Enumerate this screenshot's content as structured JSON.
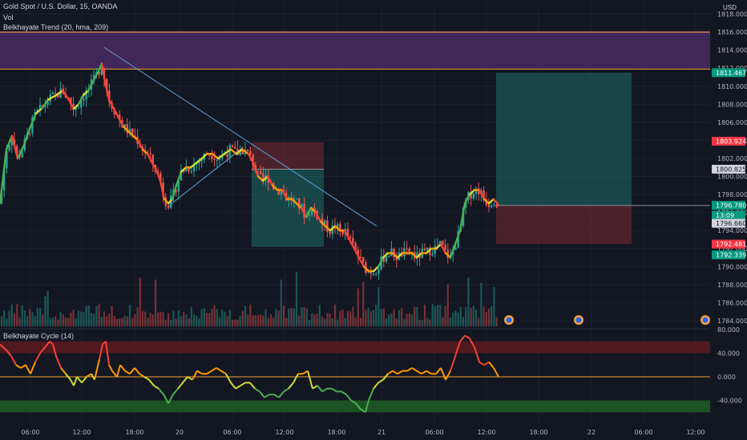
{
  "legend": {
    "symbol": "Gold Spot / U.S. Dollar, 15, OANDA",
    "volume": "Vol",
    "trend": "Belkhayate Trend (20, hma, 209)",
    "cycle": "Belkhayate Cycle (14)"
  },
  "currency": "USD",
  "colors": {
    "background": "#131722",
    "up": "#26a69a",
    "down": "#ef5350",
    "grid": "#1e222d",
    "purple_zone": "#4a2a63",
    "orange_line": "#f7a23b",
    "trend_line": "#5da3d6"
  },
  "chart_data": [
    {
      "type": "candlestick",
      "name": "Gold Spot / U.S. Dollar, 15, OANDA",
      "ylim": [
        1783.2,
        1819.2
      ],
      "yticks": [
        1784.0,
        1786.0,
        1788.0,
        1790.0,
        1792.0,
        1794.0,
        1796.0,
        1798.0,
        1800.0,
        1802.0,
        1804.0,
        1806.0,
        1808.0,
        1810.0,
        1812.0,
        1814.0,
        1816.0,
        1818.0
      ],
      "ytick_labels": [
        "1784.000",
        "1786.000",
        "1788.000",
        "1790.000",
        "1792.000",
        "1794.000",
        "1796.000",
        "1798.000",
        "1800.000",
        "1802.000",
        "1804.000",
        "1806.000",
        "1808.000",
        "1810.000",
        "1812.000",
        "1814.000",
        "1816.000",
        "1818.000"
      ],
      "xtick_labels": [
        "06:00",
        "12:00",
        "18:00",
        "20",
        "06:00",
        "12:00",
        "18:00",
        "21",
        "06:00",
        "12:00",
        "18:00",
        "22",
        "06:00",
        "12:00"
      ],
      "close_path": [
        [
          0,
          1797.0
        ],
        [
          8,
          1803.0
        ],
        [
          15,
          1804.5
        ],
        [
          22,
          1802.0
        ],
        [
          30,
          1803.5
        ],
        [
          38,
          1805.5
        ],
        [
          45,
          1807.0
        ],
        [
          52,
          1807.5
        ],
        [
          60,
          1808.5
        ],
        [
          70,
          1809.0
        ],
        [
          78,
          1809.5
        ],
        [
          86,
          1808.5
        ],
        [
          92,
          1807.5
        ],
        [
          98,
          1808.0
        ],
        [
          104,
          1809.0
        ],
        [
          110,
          1809.5
        ],
        [
          116,
          1810.5
        ],
        [
          122,
          1811.5
        ],
        [
          127,
          1812.5
        ],
        [
          131,
          1810.5
        ],
        [
          136,
          1808.5
        ],
        [
          142,
          1807.5
        ],
        [
          148,
          1806.5
        ],
        [
          154,
          1805.5
        ],
        [
          160,
          1805.0
        ],
        [
          166,
          1804.5
        ],
        [
          172,
          1804.0
        ],
        [
          178,
          1803.0
        ],
        [
          184,
          1802.5
        ],
        [
          190,
          1801.5
        ],
        [
          196,
          1800.5
        ],
        [
          200,
          1799.5
        ],
        [
          205,
          1797.5
        ],
        [
          210,
          1797.0
        ],
        [
          215,
          1797.5
        ],
        [
          220,
          1799.0
        ],
        [
          226,
          1800.5
        ],
        [
          232,
          1801.0
        ],
        [
          238,
          1801.0
        ],
        [
          245,
          1801.5
        ],
        [
          252,
          1802.0
        ],
        [
          258,
          1802.5
        ],
        [
          265,
          1802.5
        ],
        [
          272,
          1802.0
        ],
        [
          280,
          1802.5
        ],
        [
          288,
          1803.0
        ],
        [
          295,
          1802.5
        ],
        [
          302,
          1803.0
        ],
        [
          310,
          1802.5
        ],
        [
          316,
          1801.5
        ],
        [
          322,
          1800.0
        ],
        [
          328,
          1799.5
        ],
        [
          334,
          1800.0
        ],
        [
          340,
          1799.0
        ],
        [
          346,
          1798.5
        ],
        [
          352,
          1798.5
        ],
        [
          358,
          1797.5
        ],
        [
          364,
          1797.5
        ],
        [
          370,
          1797.0
        ],
        [
          376,
          1796.5
        ],
        [
          382,
          1795.5
        ],
        [
          388,
          1796.5
        ],
        [
          394,
          1796.0
        ],
        [
          400,
          1795.0
        ],
        [
          406,
          1794.5
        ],
        [
          412,
          1794.0
        ],
        [
          418,
          1794.5
        ],
        [
          424,
          1794.0
        ],
        [
          430,
          1794.0
        ],
        [
          436,
          1793.0
        ],
        [
          442,
          1792.0
        ],
        [
          448,
          1791.0
        ],
        [
          454,
          1790.0
        ],
        [
          460,
          1789.5
        ],
        [
          466,
          1789.5
        ],
        [
          472,
          1790.0
        ],
        [
          478,
          1791.0
        ],
        [
          484,
          1791.5
        ],
        [
          490,
          1791.5
        ],
        [
          496,
          1791.0
        ],
        [
          502,
          1791.5
        ],
        [
          508,
          1791.5
        ],
        [
          514,
          1791.5
        ],
        [
          520,
          1791.0
        ],
        [
          526,
          1791.5
        ],
        [
          532,
          1791.5
        ],
        [
          538,
          1792.0
        ],
        [
          544,
          1792.0
        ],
        [
          550,
          1792.5
        ],
        [
          556,
          1791.5
        ],
        [
          562,
          1791.0
        ],
        [
          568,
          1792.5
        ],
        [
          574,
          1794.0
        ],
        [
          580,
          1797.0
        ],
        [
          586,
          1798.0
        ],
        [
          592,
          1798.5
        ],
        [
          598,
          1798.5
        ],
        [
          604,
          1797.5
        ],
        [
          610,
          1797.0
        ],
        [
          616,
          1797.5
        ],
        [
          622,
          1796.8
        ]
      ],
      "volume_ylim": [
        0,
        100
      ],
      "annotations": {
        "resistance_zone": [
          1811.9,
          1816.1
        ],
        "resistance_lines": [
          1816.0,
          1811.9
        ],
        "trend_line": {
          "start": [
            130,
            1814.3
          ],
          "end": [
            470,
            1794.5
          ]
        },
        "support_line": {
          "start": [
            210,
            1796.7
          ],
          "end": [
            303,
            1803.2
          ]
        },
        "short_position": {
          "x": [
            314,
            404
          ],
          "entry": 1800.8,
          "stop": 1803.8,
          "target": 1792.2
        },
        "long_position": {
          "x": [
            619,
            788
          ],
          "entry": 1796.78,
          "stop": 1792.5,
          "target": 1811.5
        }
      },
      "price_tags": [
        {
          "value": "1811.467",
          "price": 1811.5,
          "bg": "#089981",
          "fg": "#ffffff"
        },
        {
          "value": "1803.924",
          "price": 1803.9,
          "bg": "#f23645",
          "fg": "#ffffff"
        },
        {
          "value": "1800.825",
          "price": 1800.8,
          "bg": "#d1d4dc",
          "fg": "#131722"
        },
        {
          "value": "1796.780",
          "price": 1796.8,
          "bg": "#089981",
          "fg": "#ffffff"
        },
        {
          "value": "13:09",
          "price": 1795.7,
          "bg": "#089981",
          "fg": "#ffffff"
        },
        {
          "value": "1796.660",
          "price": 1794.8,
          "bg": "#d1d4dc",
          "fg": "#131722"
        },
        {
          "value": "1792.481",
          "price": 1792.5,
          "bg": "#f23645",
          "fg": "#ffffff"
        },
        {
          "value": "1792.339",
          "price": 1791.3,
          "bg": "#089981",
          "fg": "#ffffff"
        }
      ]
    },
    {
      "type": "line",
      "name": "Belkhayate Cycle (14)",
      "ylim": [
        -80,
        80
      ],
      "yticks": [
        80,
        40,
        0,
        -40
      ],
      "ytick_labels": [
        "80.000",
        "40.000",
        "0.000",
        "-40.000"
      ],
      "overbought_band": [
        40,
        60
      ],
      "oversold_band": [
        -60,
        -40
      ],
      "path": [
        [
          0,
          55
        ],
        [
          8,
          45
        ],
        [
          14,
          35
        ],
        [
          20,
          20
        ],
        [
          26,
          15
        ],
        [
          32,
          20
        ],
        [
          38,
          5
        ],
        [
          44,
          25
        ],
        [
          50,
          40
        ],
        [
          56,
          50
        ],
        [
          62,
          60
        ],
        [
          66,
          55
        ],
        [
          70,
          35
        ],
        [
          76,
          15
        ],
        [
          82,
          5
        ],
        [
          88,
          -5
        ],
        [
          92,
          -15
        ],
        [
          96,
          0
        ],
        [
          102,
          -10
        ],
        [
          108,
          0
        ],
        [
          114,
          5
        ],
        [
          118,
          -5
        ],
        [
          124,
          30
        ],
        [
          128,
          55
        ],
        [
          132,
          60
        ],
        [
          136,
          20
        ],
        [
          140,
          10
        ],
        [
          146,
          0
        ],
        [
          150,
          20
        ],
        [
          156,
          10
        ],
        [
          162,
          5
        ],
        [
          168,
          15
        ],
        [
          174,
          5
        ],
        [
          180,
          0
        ],
        [
          186,
          -5
        ],
        [
          192,
          -15
        ],
        [
          198,
          -20
        ],
        [
          204,
          -30
        ],
        [
          210,
          -45
        ],
        [
          216,
          -30
        ],
        [
          222,
          -20
        ],
        [
          228,
          -10
        ],
        [
          234,
          0
        ],
        [
          240,
          -5
        ],
        [
          246,
          10
        ],
        [
          252,
          5
        ],
        [
          258,
          5
        ],
        [
          264,
          10
        ],
        [
          270,
          15
        ],
        [
          276,
          10
        ],
        [
          282,
          5
        ],
        [
          288,
          -10
        ],
        [
          294,
          -20
        ],
        [
          300,
          -15
        ],
        [
          306,
          -10
        ],
        [
          312,
          -10
        ],
        [
          318,
          -20
        ],
        [
          324,
          -25
        ],
        [
          330,
          -35
        ],
        [
          336,
          -30
        ],
        [
          342,
          -30
        ],
        [
          348,
          -35
        ],
        [
          354,
          -25
        ],
        [
          360,
          -20
        ],
        [
          366,
          -10
        ],
        [
          372,
          5
        ],
        [
          378,
          5
        ],
        [
          384,
          10
        ],
        [
          390,
          -20
        ],
        [
          396,
          -15
        ],
        [
          402,
          -25
        ],
        [
          408,
          -20
        ],
        [
          414,
          -20
        ],
        [
          420,
          -25
        ],
        [
          426,
          -25
        ],
        [
          432,
          -30
        ],
        [
          438,
          -40
        ],
        [
          444,
          -45
        ],
        [
          450,
          -55
        ],
        [
          456,
          -60
        ],
        [
          460,
          -40
        ],
        [
          466,
          -20
        ],
        [
          472,
          -10
        ],
        [
          478,
          -5
        ],
        [
          484,
          5
        ],
        [
          490,
          10
        ],
        [
          496,
          5
        ],
        [
          502,
          10
        ],
        [
          508,
          10
        ],
        [
          514,
          15
        ],
        [
          520,
          10
        ],
        [
          526,
          5
        ],
        [
          532,
          10
        ],
        [
          538,
          5
        ],
        [
          544,
          5
        ],
        [
          550,
          15
        ],
        [
          556,
          -5
        ],
        [
          562,
          10
        ],
        [
          568,
          35
        ],
        [
          574,
          60
        ],
        [
          580,
          70
        ],
        [
          586,
          65
        ],
        [
          592,
          50
        ],
        [
          598,
          25
        ],
        [
          604,
          20
        ],
        [
          610,
          25
        ],
        [
          616,
          15
        ],
        [
          622,
          0
        ]
      ]
    }
  ]
}
